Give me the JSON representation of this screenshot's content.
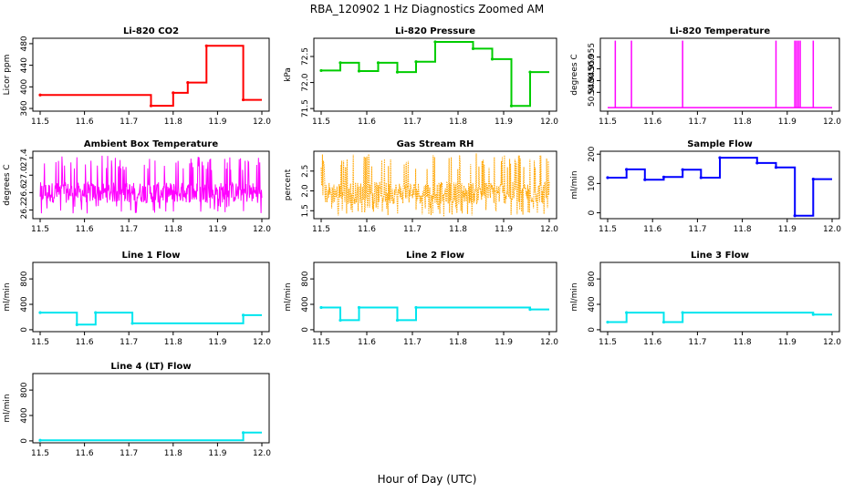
{
  "figure": {
    "title": "RBA_120902  1 Hz Diagnostics Zoomed AM",
    "xlabel": "Hour of Day (UTC)"
  },
  "chart_data": [
    {
      "type": "line",
      "title": "Li-820 CO2",
      "ylabel": "Licor ppm",
      "color": "#ff0000",
      "xlim": [
        11.5,
        12.0
      ],
      "ylim": [
        355,
        490
      ],
      "yticks": [
        "360",
        "400",
        "440",
        "480"
      ],
      "xticks": [
        "11.5",
        "11.6",
        "11.7",
        "11.8",
        "11.9",
        "12.0"
      ],
      "segments": [
        {
          "x": [
            11.5,
            11.75
          ],
          "y": 385
        },
        {
          "x": [
            11.75,
            11.8
          ],
          "y": 365
        },
        {
          "x": [
            11.8,
            11.833
          ],
          "y": 389
        },
        {
          "x": [
            11.833,
            11.875
          ],
          "y": 408
        },
        {
          "x": [
            11.875,
            11.958
          ],
          "y": 476
        },
        {
          "x": [
            11.958,
            12.0
          ],
          "y": 376
        }
      ]
    },
    {
      "type": "line",
      "title": "Li-820 Pressure",
      "ylabel": "kPa",
      "color": "#00cc00",
      "xlim": [
        11.5,
        12.0
      ],
      "ylim": [
        71.45,
        72.85
      ],
      "yticks": [
        "71.5",
        "72.0",
        "72.5"
      ],
      "xticks": [
        "11.5",
        "11.6",
        "11.7",
        "11.8",
        "11.9",
        "12.0"
      ],
      "segments": [
        {
          "x": [
            11.5,
            11.542
          ],
          "y": 72.23
        },
        {
          "x": [
            11.542,
            11.583
          ],
          "y": 72.38
        },
        {
          "x": [
            11.583,
            11.625
          ],
          "y": 72.22
        },
        {
          "x": [
            11.625,
            11.667
          ],
          "y": 72.38
        },
        {
          "x": [
            11.667,
            11.708
          ],
          "y": 72.2
        },
        {
          "x": [
            11.708,
            11.75
          ],
          "y": 72.4
        },
        {
          "x": [
            11.75,
            11.833
          ],
          "y": 72.78
        },
        {
          "x": [
            11.833,
            11.875
          ],
          "y": 72.65
        },
        {
          "x": [
            11.875,
            11.917
          ],
          "y": 72.45
        },
        {
          "x": [
            11.917,
            11.958
          ],
          "y": 71.55
        },
        {
          "x": [
            11.958,
            12.0
          ],
          "y": 72.2
        }
      ]
    },
    {
      "type": "line",
      "title": "Li-820 Temperature",
      "ylabel": "degrees C",
      "color": "#ff00ff",
      "xlim": [
        11.5,
        12.0
      ],
      "ylim": [
        50.932,
        50.963
      ],
      "yticks": [
        "50.940",
        "50.945",
        "50.950",
        "50.955"
      ],
      "xticks": [
        "11.5",
        "11.6",
        "11.7",
        "11.8",
        "11.9",
        "12.0"
      ],
      "baseline": 50.9335,
      "spike_top": 50.962,
      "spikes": [
        11.517,
        11.553,
        11.667,
        11.875,
        11.917,
        11.921,
        11.925,
        11.929,
        11.958
      ]
    },
    {
      "type": "line",
      "title": "Ambient Box Temperature",
      "ylabel": "degrees C",
      "color": "#ff00ff",
      "xlim": [
        11.5,
        12.0
      ],
      "ylim": [
        26.0,
        27.55
      ],
      "yticks": [
        "26.2",
        "26.6",
        "27.0",
        "27.4"
      ],
      "xticks": [
        "11.5",
        "11.6",
        "11.7",
        "11.8",
        "11.9",
        "12.0"
      ],
      "noise_mean": 26.6,
      "noise_range": [
        26.1,
        27.45
      ]
    },
    {
      "type": "line",
      "title": "Gas Stream RH",
      "ylabel": "percent",
      "color": "#ffa500",
      "xlim": [
        11.5,
        12.0
      ],
      "ylim": [
        1.3,
        3.0
      ],
      "yticks": [
        "1.5",
        "2.0",
        "2.5"
      ],
      "xticks": [
        "11.5",
        "11.6",
        "11.7",
        "11.8",
        "11.9",
        "12.0"
      ],
      "noise_mean": 1.95,
      "noise_range": [
        1.35,
        2.95
      ]
    },
    {
      "type": "line",
      "title": "Sample Flow",
      "ylabel": "ml/min",
      "color": "#0000ff",
      "xlim": [
        11.5,
        12.0
      ],
      "ylim": [
        -20,
        210
      ],
      "yticks": [
        "0",
        "100",
        "200"
      ],
      "xticks": [
        "11.5",
        "11.6",
        "11.7",
        "11.8",
        "11.9",
        "12.0"
      ],
      "segments": [
        {
          "x": [
            11.5,
            11.542
          ],
          "y": 120
        },
        {
          "x": [
            11.542,
            11.583
          ],
          "y": 148
        },
        {
          "x": [
            11.583,
            11.625
          ],
          "y": 113
        },
        {
          "x": [
            11.625,
            11.667
          ],
          "y": 122
        },
        {
          "x": [
            11.667,
            11.708
          ],
          "y": 147
        },
        {
          "x": [
            11.708,
            11.75
          ],
          "y": 120
        },
        {
          "x": [
            11.75,
            11.833
          ],
          "y": 188
        },
        {
          "x": [
            11.833,
            11.875
          ],
          "y": 170
        },
        {
          "x": [
            11.875,
            11.917
          ],
          "y": 155
        },
        {
          "x": [
            11.917,
            11.958
          ],
          "y": -10
        },
        {
          "x": [
            11.958,
            12.0
          ],
          "y": 115
        }
      ]
    },
    {
      "type": "line",
      "title": "Line 1 Flow",
      "ylabel": "ml/min",
      "color": "#00e5ee",
      "xlim": [
        11.5,
        12.0
      ],
      "ylim": [
        -30,
        1060
      ],
      "yticks": [
        "0",
        "400",
        "800"
      ],
      "xticks": [
        "11.5",
        "11.6",
        "11.7",
        "11.8",
        "11.9",
        "12.0"
      ],
      "segments": [
        {
          "x": [
            11.5,
            11.583
          ],
          "y": 270
        },
        {
          "x": [
            11.583,
            11.625
          ],
          "y": 80
        },
        {
          "x": [
            11.625,
            11.708
          ],
          "y": 270
        },
        {
          "x": [
            11.708,
            11.958
          ],
          "y": 100
        },
        {
          "x": [
            11.958,
            12.0
          ],
          "y": 230
        }
      ]
    },
    {
      "type": "line",
      "title": "Line 2 Flow",
      "ylabel": "ml/min",
      "color": "#00e5ee",
      "xlim": [
        11.5,
        12.0
      ],
      "ylim": [
        -30,
        1060
      ],
      "yticks": [
        "0",
        "400",
        "800"
      ],
      "xticks": [
        "11.5",
        "11.6",
        "11.7",
        "11.8",
        "11.9",
        "12.0"
      ],
      "segments": [
        {
          "x": [
            11.5,
            11.542
          ],
          "y": 350
        },
        {
          "x": [
            11.542,
            11.583
          ],
          "y": 150
        },
        {
          "x": [
            11.583,
            11.667
          ],
          "y": 350
        },
        {
          "x": [
            11.667,
            11.708
          ],
          "y": 150
        },
        {
          "x": [
            11.708,
            11.958
          ],
          "y": 350
        },
        {
          "x": [
            11.958,
            12.0
          ],
          "y": 320
        }
      ]
    },
    {
      "type": "line",
      "title": "Line 3 Flow",
      "ylabel": "ml/min",
      "color": "#00e5ee",
      "xlim": [
        11.5,
        12.0
      ],
      "ylim": [
        -30,
        1060
      ],
      "yticks": [
        "0",
        "400",
        "800"
      ],
      "xticks": [
        "11.5",
        "11.6",
        "11.7",
        "11.8",
        "11.9",
        "12.0"
      ],
      "segments": [
        {
          "x": [
            11.5,
            11.542
          ],
          "y": 120
        },
        {
          "x": [
            11.542,
            11.625
          ],
          "y": 270
        },
        {
          "x": [
            11.625,
            11.667
          ],
          "y": 120
        },
        {
          "x": [
            11.667,
            11.958
          ],
          "y": 270
        },
        {
          "x": [
            11.958,
            12.0
          ],
          "y": 240
        }
      ]
    },
    {
      "type": "line",
      "title": "Line 4 (LT) Flow",
      "ylabel": "ml/min",
      "color": "#00e5ee",
      "xlim": [
        11.5,
        12.0
      ],
      "ylim": [
        -30,
        1060
      ],
      "yticks": [
        "0",
        "400",
        "800"
      ],
      "xticks": [
        "11.5",
        "11.6",
        "11.7",
        "11.8",
        "11.9",
        "12.0"
      ],
      "segments": [
        {
          "x": [
            11.5,
            11.958
          ],
          "y": 10
        },
        {
          "x": [
            11.958,
            12.0
          ],
          "y": 130
        }
      ]
    }
  ]
}
